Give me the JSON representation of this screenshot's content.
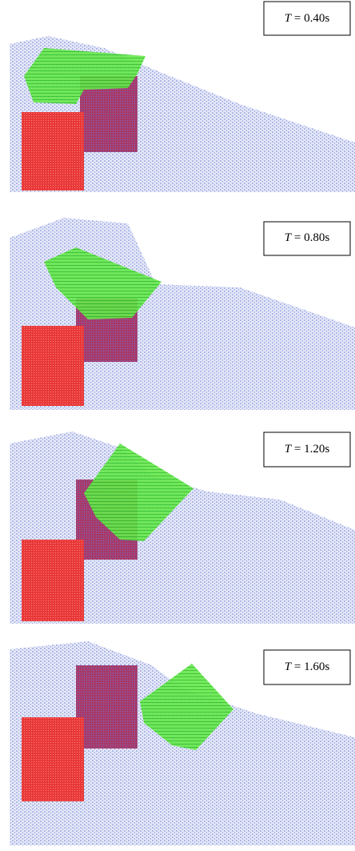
{
  "panels": [
    {
      "label": [
        "T",
        " = 0.40s"
      ]
    },
    {
      "label": [
        "T",
        " = 0.80s"
      ]
    },
    {
      "label": [
        "T",
        " = 1.20s"
      ]
    },
    {
      "label": [
        "T",
        " = 1.60s"
      ]
    }
  ]
}
